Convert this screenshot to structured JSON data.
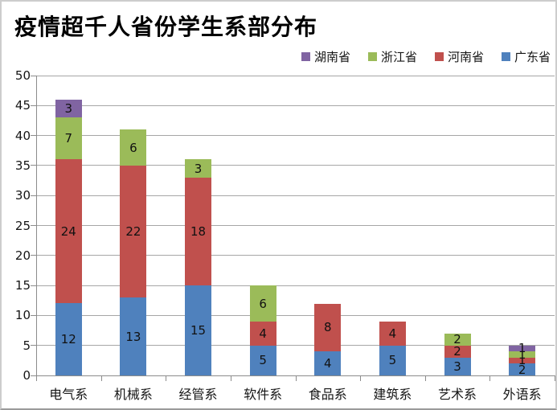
{
  "chart_data": {
    "type": "bar",
    "stacked": true,
    "title": "疫情超千人省份学生系部分布",
    "categories": [
      "电气系",
      "机械系",
      "经管系",
      "软件系",
      "食品系",
      "建筑系",
      "艺术系",
      "外语系"
    ],
    "series": [
      {
        "name": "广东省",
        "color": "#4F81BD",
        "values": [
          12,
          13,
          15,
          5,
          4,
          5,
          3,
          2
        ]
      },
      {
        "name": "河南省",
        "color": "#C0504D",
        "values": [
          24,
          22,
          18,
          4,
          8,
          4,
          2,
          1
        ]
      },
      {
        "name": "浙江省",
        "color": "#9BBB59",
        "values": [
          7,
          6,
          3,
          6,
          0,
          0,
          2,
          1
        ]
      },
      {
        "name": "湖南省",
        "color": "#8064A2",
        "values": [
          3,
          0,
          0,
          0,
          0,
          0,
          0,
          1
        ]
      }
    ],
    "totals": [
      46,
      41,
      36,
      15,
      12,
      9,
      7,
      5
    ],
    "legend": {
      "position": "top-right",
      "order": [
        "湖南省",
        "浙江省",
        "河南省",
        "广东省"
      ]
    },
    "xlabel": "",
    "ylabel": "",
    "ylim": [
      0,
      50
    ],
    "yticks": [
      0,
      5,
      10,
      15,
      20,
      25,
      30,
      35,
      40,
      45,
      50
    ],
    "grid": true,
    "data_labels": true,
    "colors": {
      "background": "#FFFFFF",
      "gridline": "#A6A6A6",
      "axis": "#8C8C8C",
      "text": "#151515"
    }
  }
}
